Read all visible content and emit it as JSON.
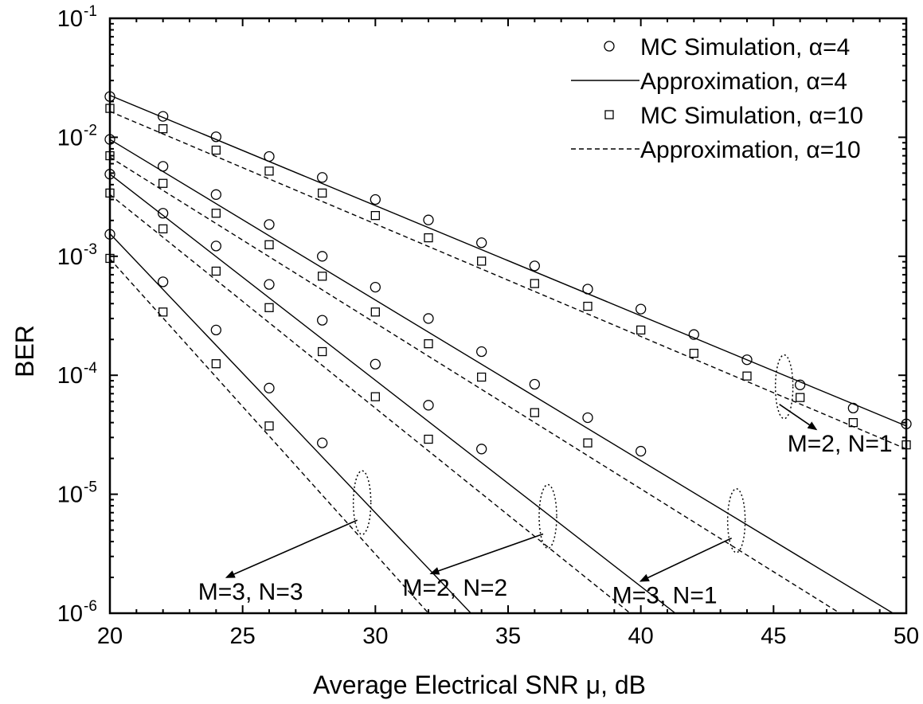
{
  "chart_data": {
    "type": "line",
    "title": "",
    "xlabel": "Average Electrical SNR μ, dB",
    "ylabel": "BER",
    "xlim": [
      20,
      50
    ],
    "ylim": [
      1e-06,
      0.1
    ],
    "yscale": "log",
    "x_ticks": [
      20,
      25,
      30,
      35,
      40,
      45,
      50
    ],
    "x_tick_labels": [
      "20",
      "25",
      "30",
      "35",
      "40",
      "45",
      "50"
    ],
    "y_ticks": [
      {
        "value": 0.1,
        "base": "10",
        "exp": "-1"
      },
      {
        "value": 0.01,
        "base": "10",
        "exp": "-2"
      },
      {
        "value": 0.001,
        "base": "10",
        "exp": "-3"
      },
      {
        "value": 0.0001,
        "base": "10",
        "exp": "-4"
      },
      {
        "value": 1e-05,
        "base": "10",
        "exp": "-5"
      },
      {
        "value": 1e-06,
        "base": "10",
        "exp": "-6"
      }
    ],
    "legend_position": "top-right",
    "legend": [
      {
        "label": "MC Simulation, α=4",
        "style": "circle"
      },
      {
        "label": "Approximation, α=4",
        "style": "solid"
      },
      {
        "label": "MC Simulation, α=10",
        "style": "square"
      },
      {
        "label": "Approximation, α=10",
        "style": "dashed"
      }
    ],
    "series": [
      {
        "group": "M=2, N=1",
        "kind": "MC Simulation, α=4",
        "points": [
          [
            20,
            0.022
          ],
          [
            22,
            0.015
          ],
          [
            24,
            0.0101
          ],
          [
            26,
            0.0069
          ],
          [
            28,
            0.0046
          ],
          [
            30,
            0.003
          ],
          [
            32,
            0.00202
          ],
          [
            34,
            0.0013
          ],
          [
            36,
            0.00083
          ],
          [
            38,
            0.00053
          ],
          [
            40,
            0.00036
          ],
          [
            42,
            0.00022
          ],
          [
            44,
            0.000135
          ],
          [
            46,
            8.3e-05
          ],
          [
            48,
            5.3e-05
          ],
          [
            50,
            3.9e-05
          ]
        ]
      },
      {
        "group": "M=2, N=1",
        "kind": "Approximation, α=4",
        "points": [
          [
            20,
            0.0225
          ],
          [
            50,
            3.75e-05
          ]
        ]
      },
      {
        "group": "M=2, N=1",
        "kind": "MC Simulation, α=10",
        "points": [
          [
            20,
            0.0175
          ],
          [
            22,
            0.0118
          ],
          [
            24,
            0.0078
          ],
          [
            26,
            0.0052
          ],
          [
            28,
            0.0034
          ],
          [
            30,
            0.0022
          ],
          [
            32,
            0.00143
          ],
          [
            34,
            0.00091
          ],
          [
            36,
            0.00059
          ],
          [
            38,
            0.00038
          ],
          [
            40,
            0.00024
          ],
          [
            42,
            0.000153
          ],
          [
            44,
            9.85e-05
          ],
          [
            46,
            6.5e-05
          ],
          [
            48,
            4e-05
          ],
          [
            50,
            2.6e-05
          ]
        ]
      },
      {
        "group": "M=2, N=1",
        "kind": "Approximation, α=10",
        "points": [
          [
            20,
            0.0165
          ],
          [
            50,
            2.4e-05
          ]
        ]
      },
      {
        "group": "M=3, N=1",
        "kind": "MC Simulation, α=4",
        "points": [
          [
            20,
            0.0096
          ],
          [
            22,
            0.0057
          ],
          [
            24,
            0.0033
          ],
          [
            26,
            0.00185
          ],
          [
            28,
            0.001
          ],
          [
            30,
            0.00055
          ],
          [
            32,
            0.0003
          ],
          [
            34,
            0.000158
          ],
          [
            36,
            8.4e-05
          ],
          [
            38,
            4.4e-05
          ],
          [
            40,
            2.3e-05
          ]
        ]
      },
      {
        "group": "M=3, N=1",
        "kind": "Approximation, α=4",
        "points": [
          [
            20,
            0.0096
          ],
          [
            49.5,
            1e-06
          ]
        ]
      },
      {
        "group": "M=3, N=1",
        "kind": "MC Simulation, α=10",
        "points": [
          [
            20,
            0.007
          ],
          [
            22,
            0.0041
          ],
          [
            24,
            0.0023
          ],
          [
            26,
            0.00125
          ],
          [
            28,
            0.00068
          ],
          [
            30,
            0.00034
          ],
          [
            32,
            0.000184
          ],
          [
            34,
            9.65e-05
          ],
          [
            36,
            4.85e-05
          ],
          [
            38,
            2.7e-05
          ]
        ]
      },
      {
        "group": "M=3, N=1",
        "kind": "Approximation, α=10",
        "points": [
          [
            20,
            0.0068
          ],
          [
            47.5,
            1e-06
          ]
        ]
      },
      {
        "group": "M=2, N=2",
        "kind": "MC Simulation, α=4",
        "points": [
          [
            20,
            0.0049
          ],
          [
            22,
            0.0023
          ],
          [
            24,
            0.00122
          ],
          [
            26,
            0.00058
          ],
          [
            28,
            0.00029
          ],
          [
            30,
            0.000124
          ],
          [
            32,
            5.6e-05
          ],
          [
            34,
            2.4e-05
          ]
        ]
      },
      {
        "group": "M=2, N=2",
        "kind": "Approximation, α=4",
        "points": [
          [
            20,
            0.0049
          ],
          [
            41.3,
            1e-06
          ]
        ]
      },
      {
        "group": "M=2, N=2",
        "kind": "MC Simulation, α=10",
        "points": [
          [
            20,
            0.0034
          ],
          [
            22,
            0.0017
          ],
          [
            24,
            0.00075
          ],
          [
            26,
            0.00037
          ],
          [
            28,
            0.000158
          ],
          [
            30,
            6.6e-05
          ],
          [
            32,
            2.9e-05
          ]
        ]
      },
      {
        "group": "M=2, N=2",
        "kind": "Approximation, α=10",
        "points": [
          [
            20,
            0.0033
          ],
          [
            39.6,
            1e-06
          ]
        ]
      },
      {
        "group": "M=3, N=3",
        "kind": "MC Simulation, α=4",
        "points": [
          [
            20,
            0.00153
          ],
          [
            22,
            0.00061
          ],
          [
            24,
            0.00024
          ],
          [
            26,
            7.8e-05
          ],
          [
            28,
            2.7e-05
          ]
        ]
      },
      {
        "group": "M=3, N=3",
        "kind": "Approximation, α=4",
        "points": [
          [
            20,
            0.00155
          ],
          [
            33.6,
            1e-06
          ]
        ]
      },
      {
        "group": "M=3, N=3",
        "kind": "MC Simulation, α=10",
        "points": [
          [
            20,
            0.00096
          ],
          [
            22,
            0.00034
          ],
          [
            24,
            0.000125
          ],
          [
            26,
            3.75e-05
          ]
        ]
      },
      {
        "group": "M=3, N=3",
        "kind": "Approximation, α=10",
        "points": [
          [
            20,
            0.00095
          ],
          [
            32,
            1e-06
          ]
        ]
      }
    ],
    "annotations": [
      {
        "text": "M=2, N=1",
        "x": 47.5,
        "y": 2.28e-05,
        "ellipse": [
          45.4,
          8e-05
        ],
        "arrow_to": [
          45.4,
          5.6e-05
        ]
      },
      {
        "text": "M=3, N=1",
        "x": 40.9,
        "y": 1.21e-06,
        "ellipse": [
          43.6,
          6e-06
        ],
        "arrow_to": [
          42.8,
          3.2e-06
        ]
      },
      {
        "text": "M=2, N=2",
        "x": 33.0,
        "y": 1.4e-06,
        "ellipse": [
          36.5,
          6.5e-06
        ],
        "arrow_to": [
          35.2,
          2.8e-06
        ]
      },
      {
        "text": "M=3, N=3",
        "x": 25.3,
        "y": 1.3e-06,
        "ellipse": [
          29.5,
          8.5e-06
        ],
        "arrow_to": [
          28.0,
          3.3e-06
        ]
      }
    ]
  }
}
